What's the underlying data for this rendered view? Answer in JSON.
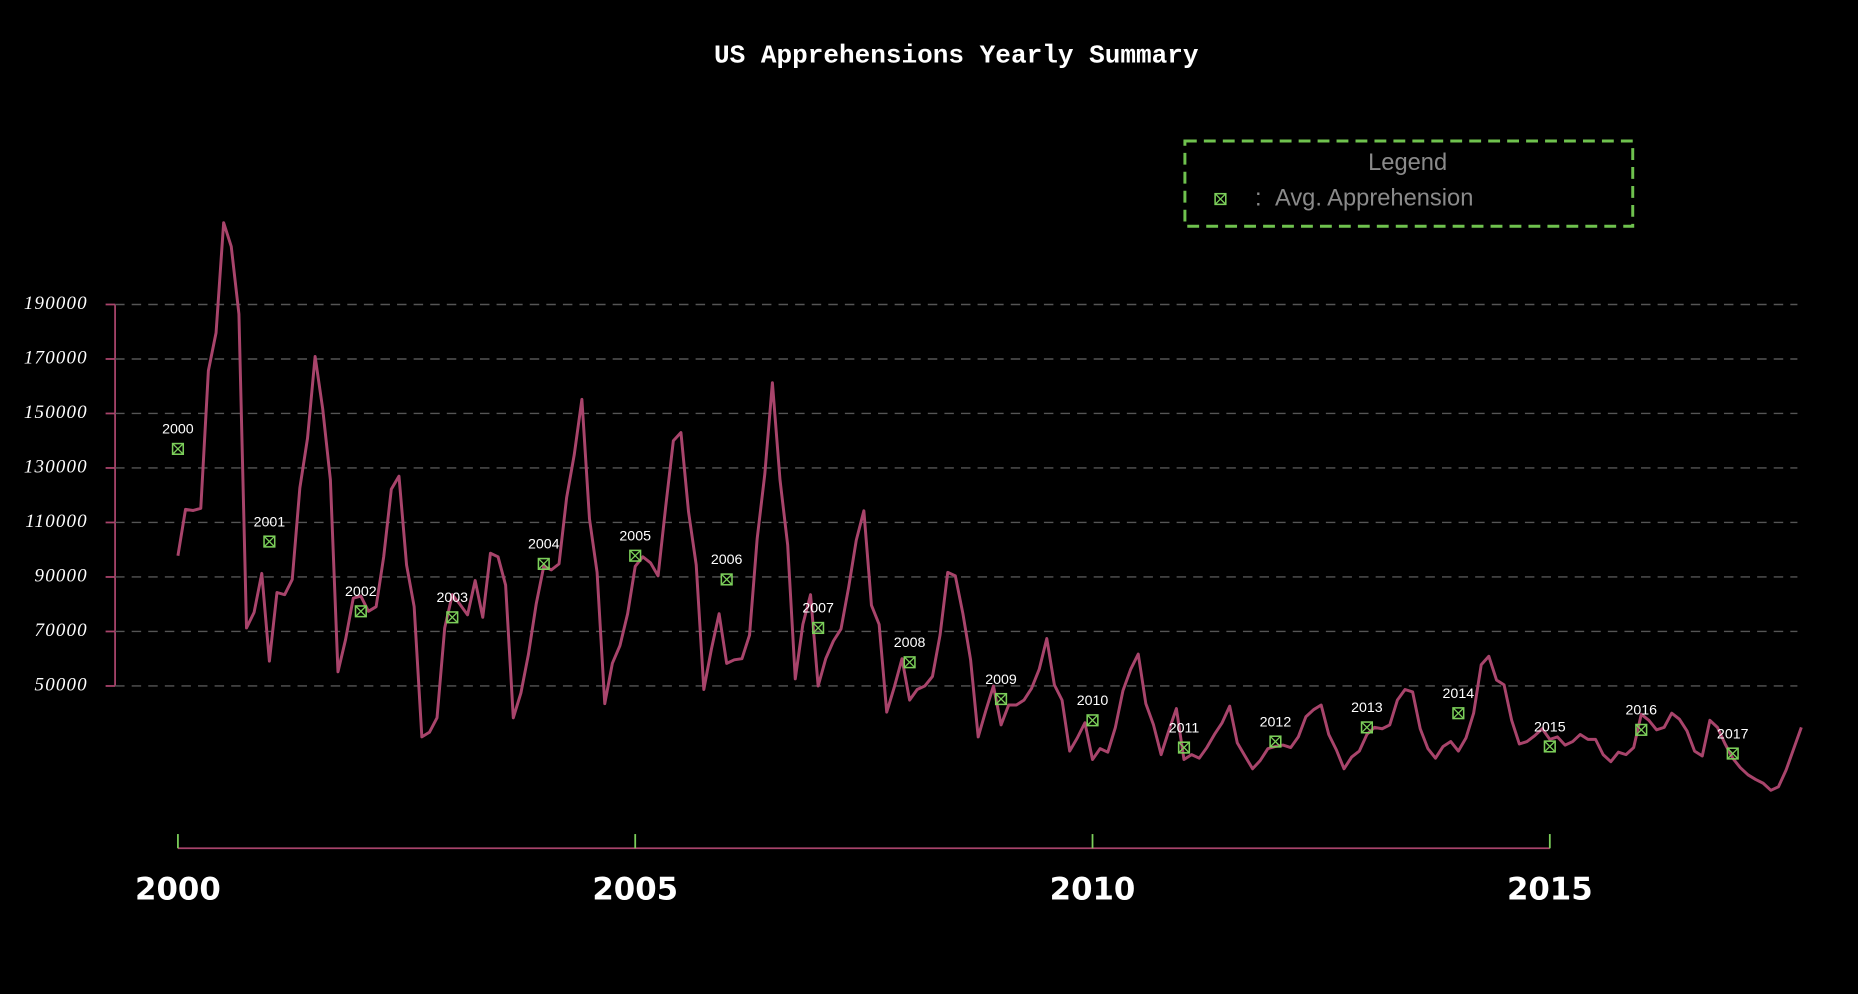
{
  "chart_data": {
    "type": "line",
    "title": "US Apprehensions Yearly Summary",
    "xlim": [
      1999.3,
      2018
    ],
    "xticks": [
      2000,
      2005,
      2010,
      2015
    ],
    "ylim": [
      -10000,
      230000
    ],
    "yticks": [
      50000,
      70000,
      90000,
      110000,
      130000,
      150000,
      170000,
      190000
    ],
    "grid": true,
    "legend": {
      "title": "Legend",
      "position": "upper right",
      "separator": ":"
    },
    "series": [
      {
        "color": "#a8446b",
        "x": [
          2000,
          2000.083,
          2000.167,
          2000.25,
          2000.333,
          2000.417,
          2000.5,
          2000.583,
          2000.667,
          2000.75,
          2000.833,
          2000.917,
          2001,
          2001.083,
          2001.167,
          2001.25,
          2001.333,
          2001.417,
          2001.5,
          2001.583,
          2001.667,
          2001.75,
          2001.833,
          2001.917,
          2002,
          2002.083,
          2002.167,
          2002.25,
          2002.333,
          2002.417,
          2002.5,
          2002.583,
          2002.667,
          2002.75,
          2002.833,
          2002.917,
          2003,
          2003.083,
          2003.167,
          2003.25,
          2003.333,
          2003.417,
          2003.5,
          2003.583,
          2003.667,
          2003.75,
          2003.833,
          2003.917,
          2004,
          2004.083,
          2004.167,
          2004.25,
          2004.333,
          2004.417,
          2004.5,
          2004.583,
          2004.667,
          2004.75,
          2004.833,
          2004.917,
          2005,
          2005.083,
          2005.167,
          2005.25,
          2005.333,
          2005.417,
          2005.5,
          2005.583,
          2005.667,
          2005.75,
          2005.833,
          2005.917,
          2006,
          2006.083,
          2006.167,
          2006.25,
          2006.333,
          2006.417,
          2006.5,
          2006.583,
          2006.667,
          2006.75,
          2006.833,
          2006.917,
          2007,
          2007.083,
          2007.167,
          2007.25,
          2007.333,
          2007.417,
          2007.5,
          2007.583,
          2007.667,
          2007.75,
          2007.833,
          2007.917,
          2008,
          2008.083,
          2008.167,
          2008.25,
          2008.333,
          2008.417,
          2008.5,
          2008.583,
          2008.667,
          2008.75,
          2008.833,
          2008.917,
          2009,
          2009.083,
          2009.167,
          2009.25,
          2009.333,
          2009.417,
          2009.5,
          2009.583,
          2009.667,
          2009.75,
          2009.833,
          2009.917,
          2010,
          2010.083,
          2010.167,
          2010.25,
          2010.333,
          2010.417,
          2010.5,
          2010.583,
          2010.667,
          2010.75,
          2010.833,
          2010.917,
          2011,
          2011.083,
          2011.167,
          2011.25,
          2011.333,
          2011.417,
          2011.5,
          2011.583,
          2011.667,
          2011.75,
          2011.833,
          2011.917,
          2012,
          2012.083,
          2012.167,
          2012.25,
          2012.333,
          2012.417,
          2012.5,
          2012.583,
          2012.667,
          2012.75,
          2012.833,
          2012.917,
          2013,
          2013.083,
          2013.167,
          2013.25,
          2013.333,
          2013.417,
          2013.5,
          2013.583,
          2013.667,
          2013.75,
          2013.833,
          2013.917,
          2014,
          2014.083,
          2014.167,
          2014.25,
          2014.333,
          2014.417,
          2014.5,
          2014.583,
          2014.667,
          2014.75,
          2014.833,
          2014.917,
          2015,
          2015.083,
          2015.167,
          2015.25,
          2015.333,
          2015.417,
          2015.5,
          2015.583,
          2015.667,
          2015.75,
          2015.833,
          2015.917,
          2016,
          2016.083,
          2016.167,
          2016.25,
          2016.333,
          2016.417,
          2016.5,
          2016.583,
          2016.667,
          2016.75,
          2016.833,
          2016.917,
          2017,
          2017.083,
          2017.167,
          2017.25,
          2017.333,
          2017.417,
          2017.5,
          2017.583,
          2017.667,
          2017.75
        ],
        "values": [
          97800,
          114800,
          114400,
          115200,
          165700,
          179600,
          220000,
          211300,
          186500,
          71300,
          77000,
          91300,
          59100,
          84300,
          83500,
          89100,
          122600,
          140900,
          170900,
          151700,
          125700,
          55200,
          67000,
          82200,
          83000,
          77400,
          79100,
          97400,
          122200,
          127000,
          94400,
          79100,
          31300,
          33000,
          38300,
          71300,
          83500,
          80000,
          76100,
          88700,
          75200,
          98700,
          97400,
          87000,
          38300,
          47400,
          61700,
          80000,
          93900,
          92600,
          94800,
          119100,
          134800,
          155200,
          111300,
          91700,
          43500,
          58300,
          64800,
          76500,
          93900,
          97400,
          95200,
          90400,
          115700,
          140000,
          143000,
          113900,
          94400,
          48700,
          63500,
          76500,
          58300,
          59600,
          60000,
          68700,
          103900,
          127800,
          161300,
          125700,
          101700,
          52600,
          72600,
          83500,
          50000,
          60000,
          66500,
          70900,
          86100,
          103500,
          114300,
          79600,
          72600,
          40400,
          49600,
          60000,
          44800,
          48700,
          50000,
          53500,
          68700,
          91700,
          90400,
          76500,
          59600,
          31300,
          40900,
          50000,
          35700,
          43000,
          43000,
          44800,
          49100,
          56100,
          67400,
          50400,
          44800,
          26100,
          30900,
          36500,
          23000,
          27000,
          25700,
          34800,
          48300,
          56100,
          61700,
          43500,
          35700,
          24800,
          33500,
          41700,
          23000,
          24800,
          23500,
          27400,
          32200,
          36500,
          42600,
          29100,
          24300,
          19600,
          22600,
          27000,
          27800,
          28300,
          27400,
          31300,
          38700,
          41300,
          43000,
          32200,
          26500,
          19600,
          23900,
          26100,
          32200,
          34800,
          34300,
          35700,
          44800,
          48700,
          47800,
          34300,
          27000,
          23500,
          27800,
          29600,
          26100,
          30900,
          40000,
          57800,
          60900,
          52200,
          50400,
          37400,
          28700,
          29600,
          31700,
          34300,
          30400,
          31300,
          28300,
          29600,
          32200,
          30400,
          30400,
          24800,
          22200,
          25700,
          24800,
          27400,
          39600,
          37400,
          33900,
          34800,
          40000,
          37800,
          33500,
          26100,
          24300,
          37400,
          34800,
          28700,
          23500,
          20000,
          17400,
          15700,
          14300,
          11700,
          13000,
          19100,
          27000,
          34800
        ]
      },
      {
        "type": "scatter",
        "name": "Avg. Apprehension",
        "color": "#7ccf5a",
        "x": [
          2000,
          2001,
          2002,
          2003,
          2004,
          2005,
          2006,
          2007,
          2008,
          2009,
          2010,
          2011,
          2012,
          2013,
          2014,
          2015,
          2016,
          2017
        ],
        "values": [
          137000,
          103000,
          77400,
          75200,
          94800,
          97800,
          89100,
          71300,
          58700,
          45200,
          37400,
          27400,
          29600,
          34800,
          40000,
          27800,
          33900,
          25200
        ]
      }
    ]
  }
}
